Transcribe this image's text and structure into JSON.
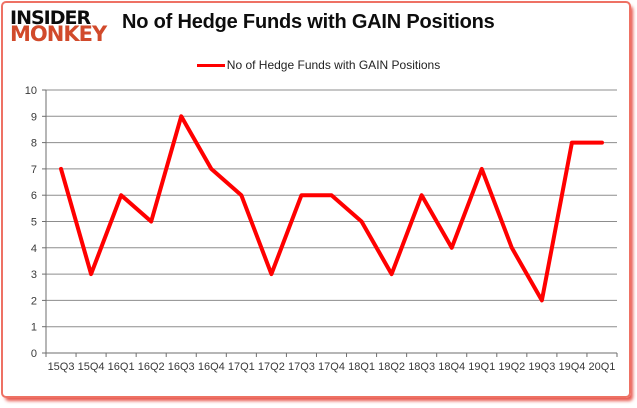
{
  "brand": {
    "line1": "INSIDER",
    "line2": "MONKEY"
  },
  "title": "No of Hedge Funds with GAIN Positions",
  "legend": {
    "label": "No of Hedge Funds with GAIN Positions"
  },
  "chart_data": {
    "type": "line",
    "title": "No of Hedge Funds with GAIN Positions",
    "categories": [
      "15Q3",
      "15Q4",
      "16Q1",
      "16Q2",
      "16Q3",
      "16Q4",
      "17Q1",
      "17Q2",
      "17Q3",
      "17Q4",
      "18Q1",
      "18Q2",
      "18Q3",
      "18Q4",
      "19Q1",
      "19Q2",
      "19Q3",
      "19Q4",
      "20Q1"
    ],
    "series": [
      {
        "name": "No of Hedge Funds with GAIN Positions",
        "color": "#ff0000",
        "values": [
          7,
          3,
          6,
          5,
          9,
          7,
          6,
          3,
          6,
          6,
          5,
          3,
          6,
          4,
          7,
          4,
          2,
          8,
          8
        ]
      }
    ],
    "xlabel": "",
    "ylabel": "",
    "ylim": [
      0,
      10
    ],
    "yticks": [
      0,
      1,
      2,
      3,
      4,
      5,
      6,
      7,
      8,
      9,
      10
    ],
    "grid": "horizontal",
    "legend_position": "top"
  },
  "colors": {
    "line": "#ff0000",
    "grid": "#8d8d8d",
    "axis": "#6e6e6e",
    "tick_label": "#3a3a3a",
    "brand_black": "#0c0c0c",
    "brand_red": "#d14a2b",
    "frame_red": "#e02216"
  }
}
